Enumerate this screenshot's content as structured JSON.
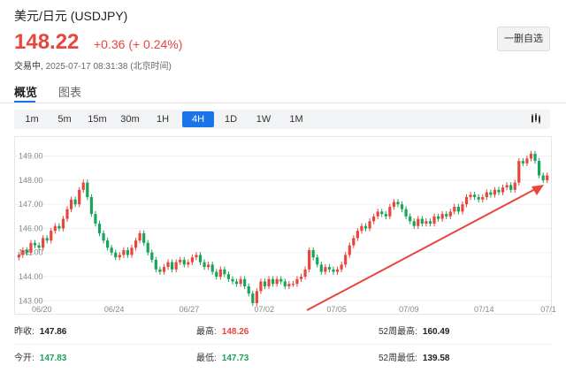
{
  "header": {
    "title": "美元/日元 (USDJPY)",
    "price": "148.22",
    "change": "+0.36 (+ 0.24%)",
    "status_label": "交易中,",
    "timestamp": "2025-07-17 08:31:38",
    "timezone": "(北京时间)",
    "remove_button": "一删自选"
  },
  "tabs": [
    {
      "label": "概览",
      "active": true
    },
    {
      "label": "图表",
      "active": false
    }
  ],
  "ranges": [
    {
      "label": "1m",
      "active": false
    },
    {
      "label": "5m",
      "active": false
    },
    {
      "label": "15m",
      "active": false
    },
    {
      "label": "30m",
      "active": false
    },
    {
      "label": "1H",
      "active": false
    },
    {
      "label": "4H",
      "active": true
    },
    {
      "label": "1D",
      "active": false
    },
    {
      "label": "1W",
      "active": false
    },
    {
      "label": "1M",
      "active": false
    }
  ],
  "chart_type_icon": "candlestick-icon",
  "chart_data": {
    "type": "candlestick",
    "y_ticks": [
      "149.00",
      "148.00",
      "147.00",
      "146.00",
      "145.00",
      "144.00",
      "143.00"
    ],
    "ylim": [
      142.9,
      149.5
    ],
    "x_ticks": [
      "06/20",
      "06/24",
      "06/27",
      "07/02",
      "07/05",
      "07/09",
      "07/14",
      "07/1"
    ],
    "up_color": "#e8453c",
    "down_color": "#17a55a",
    "annotation": "red-arrow",
    "closes": [
      144.9,
      145.1,
      145.0,
      145.4,
      145.3,
      145.2,
      145.6,
      145.5,
      145.9,
      146.1,
      146.0,
      146.4,
      146.8,
      147.2,
      147.0,
      147.6,
      147.9,
      147.3,
      146.6,
      146.2,
      145.8,
      145.5,
      145.2,
      145.0,
      144.8,
      144.9,
      145.1,
      144.9,
      145.2,
      145.5,
      145.8,
      145.4,
      145.0,
      144.7,
      144.3,
      144.2,
      144.4,
      144.6,
      144.3,
      144.6,
      144.7,
      144.5,
      144.6,
      144.8,
      144.9,
      144.6,
      144.4,
      144.5,
      144.2,
      144.0,
      144.3,
      144.1,
      143.9,
      143.8,
      143.7,
      143.9,
      143.6,
      143.3,
      142.9,
      143.4,
      143.8,
      143.6,
      143.9,
      143.7,
      143.9,
      143.8,
      143.6,
      143.7,
      143.7,
      143.9,
      144.0,
      144.3,
      145.1,
      144.8,
      144.5,
      144.2,
      144.4,
      144.3,
      144.2,
      144.3,
      144.5,
      144.9,
      145.3,
      145.6,
      145.9,
      146.1,
      146.0,
      146.3,
      146.5,
      146.7,
      146.6,
      146.5,
      146.9,
      147.1,
      147.0,
      146.8,
      146.5,
      146.3,
      146.1,
      146.4,
      146.2,
      146.3,
      146.2,
      146.5,
      146.4,
      146.6,
      146.5,
      146.7,
      146.9,
      146.7,
      147.0,
      147.3,
      147.4,
      147.3,
      147.2,
      147.3,
      147.5,
      147.4,
      147.6,
      147.5,
      147.7,
      147.8,
      147.6,
      147.9,
      148.8,
      148.7,
      148.9,
      149.1,
      148.8,
      148.2,
      148.0,
      148.2
    ]
  },
  "stats": [
    {
      "label": "昨收:",
      "value": "147.86",
      "tone": "black",
      "col": 0,
      "row": 0
    },
    {
      "label": "最高:",
      "value": "148.26",
      "tone": "red",
      "col": 1,
      "row": 0
    },
    {
      "label": "52周最高:",
      "value": "160.49",
      "tone": "black",
      "col": 2,
      "row": 0
    },
    {
      "label": "今开:",
      "value": "147.83",
      "tone": "green",
      "col": 0,
      "row": 1
    },
    {
      "label": "最低:",
      "value": "147.73",
      "tone": "green",
      "col": 1,
      "row": 1
    },
    {
      "label": "52周最低:",
      "value": "139.58",
      "tone": "black",
      "col": 2,
      "row": 1
    }
  ]
}
